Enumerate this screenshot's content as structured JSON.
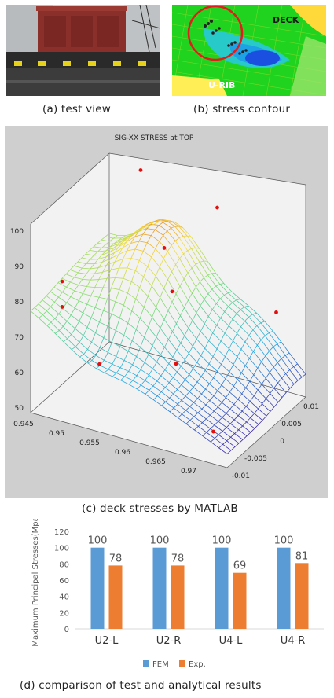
{
  "panels": {
    "a": {
      "caption": "(a)  test view"
    },
    "b": {
      "caption": "(b)  stress  contour",
      "label_deck": "DECK",
      "label_urib": "U-RIB"
    },
    "c": {
      "caption": "(c)  deck  stresses  by  MATLAB"
    },
    "d": {
      "caption": "(d)  comparison  of  test  and  analytical  results"
    }
  },
  "surface": {
    "title": "SIG-XX STRESS at TOP",
    "z_ticks": [
      "100",
      "90",
      "80",
      "70",
      "60",
      "50"
    ],
    "x_ticks": [
      "0.945",
      "0.95",
      "0.955",
      "0.96",
      "0.965",
      "0.97"
    ],
    "y_ticks": [
      "0.01",
      "0.005",
      "0",
      "-0.005",
      "-0.01"
    ]
  },
  "chart_data": {
    "type": "bar",
    "categories": [
      "U2-L",
      "U2-R",
      "U4-L",
      "U4-R"
    ],
    "series": [
      {
        "name": "FEM",
        "values": [
          100,
          100,
          100,
          100
        ],
        "color": "#5b9bd5"
      },
      {
        "name": "Exp.",
        "values": [
          78,
          78,
          69,
          81
        ],
        "color": "#ed7d31"
      }
    ],
    "ylabel": "Maximum Principal Stresses(Mpa)",
    "ylim": [
      0,
      120
    ],
    "yticks": [
      0,
      20,
      40,
      60,
      80,
      100,
      120
    ],
    "legend": "bottom",
    "grid": false
  }
}
